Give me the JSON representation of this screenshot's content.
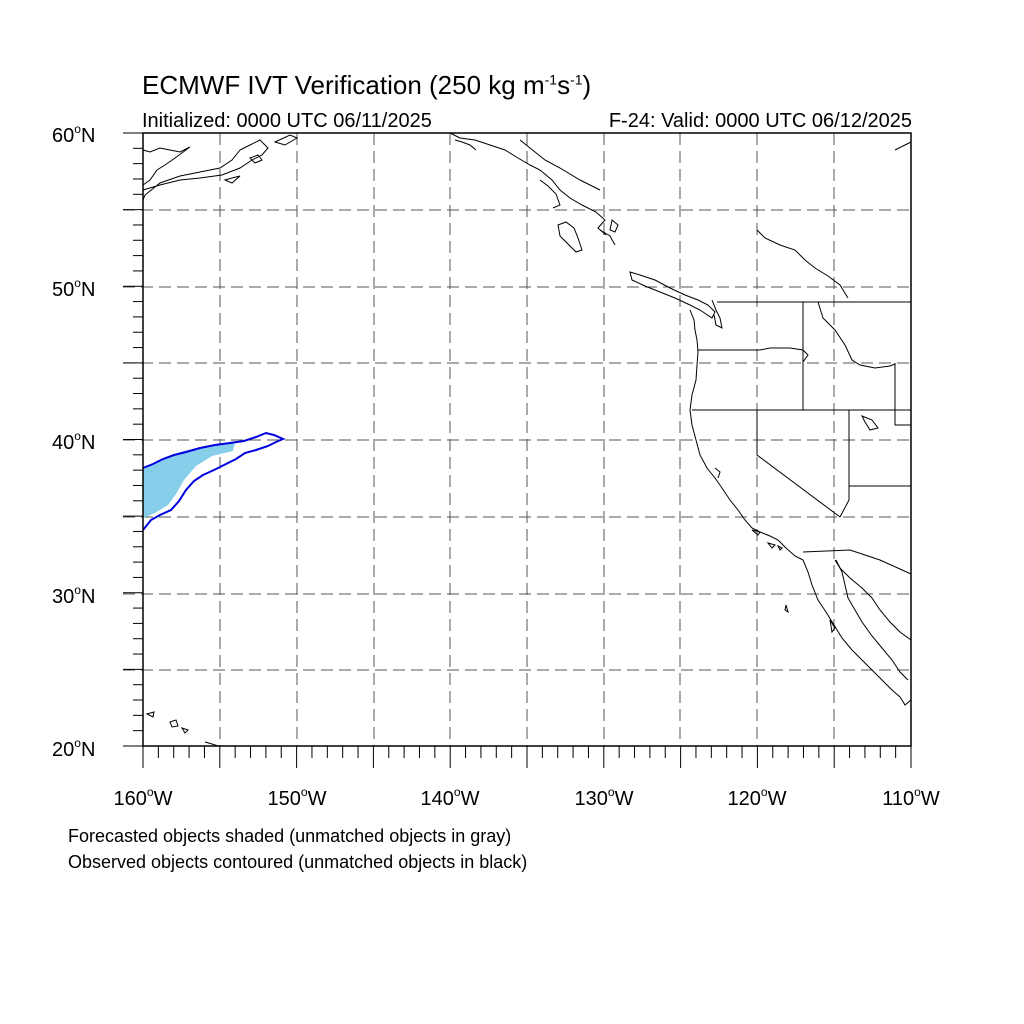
{
  "title": {
    "main": "ECMWF IVT Verification (250 kg m",
    "exp1": "-1",
    "mid": "s",
    "exp2": "-1",
    "end": ")"
  },
  "subtitle_left": "Initialized: 0000 UTC 06/11/2025",
  "subtitle_right": "F-24: Valid: 0000 UTC 06/12/2025",
  "map": {
    "lon_range": [
      -160,
      -110
    ],
    "lat_range": [
      20,
      60
    ],
    "grid_lines": "dashed every 5 degrees",
    "y_tick_labels": [
      {
        "value": "60",
        "suffix": "N"
      },
      {
        "value": "50",
        "suffix": "N"
      },
      {
        "value": "40",
        "suffix": "N"
      },
      {
        "value": "30",
        "suffix": "N"
      },
      {
        "value": "20",
        "suffix": "N"
      }
    ],
    "x_tick_labels": [
      {
        "value": "160",
        "suffix": "W"
      },
      {
        "value": "150",
        "suffix": "W"
      },
      {
        "value": "140",
        "suffix": "W"
      },
      {
        "value": "130",
        "suffix": "W"
      },
      {
        "value": "120",
        "suffix": "W"
      },
      {
        "value": "110",
        "suffix": "W"
      }
    ],
    "forecast_object_color": "#87ceeb",
    "observed_contour_color": "#0000e0",
    "coastline_color": "#000000"
  },
  "footnotes": [
    "Forecasted objects shaded (unmatched objects in gray)",
    "Observed objects contoured (unmatched objects in black)"
  ]
}
